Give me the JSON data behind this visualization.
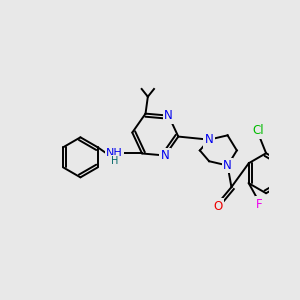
{
  "background_color": "#e8e8e8",
  "bond_color": "#000000",
  "bond_width": 1.4,
  "atom_colors": {
    "N": "#0000ee",
    "O": "#ee0000",
    "Cl": "#00bb00",
    "F": "#ee00ee",
    "C": "#000000",
    "H": "#006666"
  },
  "font_size": 8.5
}
